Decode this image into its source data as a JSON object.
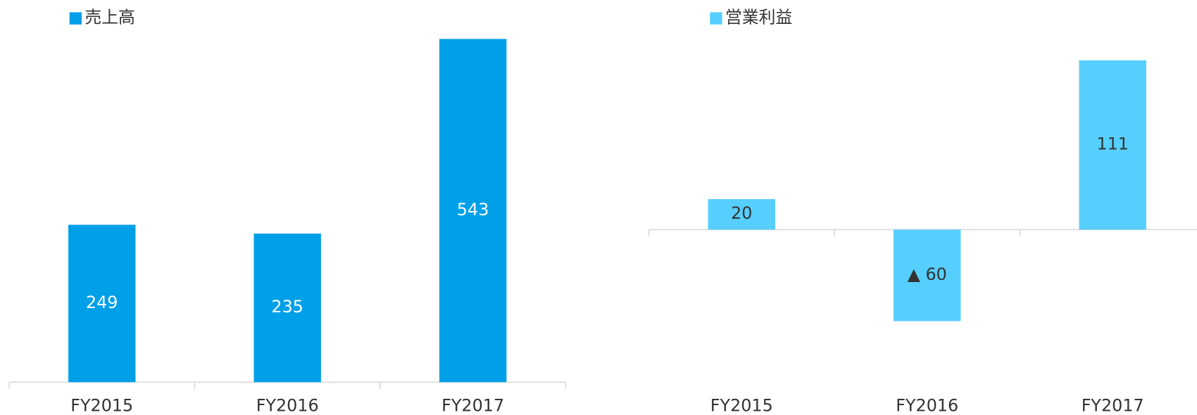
{
  "chart_data": [
    {
      "type": "bar",
      "categories": [
        "FY2015",
        "FY2016",
        "FY2017"
      ],
      "series": [
        {
          "name": "売上高",
          "color": "#00a0e9",
          "values": [
            249,
            235,
            543
          ]
        }
      ],
      "ylim": [
        0,
        543
      ]
    },
    {
      "type": "bar",
      "categories": [
        "FY2015",
        "FY2016",
        "FY2017"
      ],
      "series": [
        {
          "name": "営業利益",
          "color": "#56cfff",
          "values": [
            20,
            -60,
            111
          ],
          "value_labels": [
            "20",
            "▲ 60",
            "111"
          ]
        }
      ],
      "ylim": [
        -100,
        125
      ]
    }
  ]
}
